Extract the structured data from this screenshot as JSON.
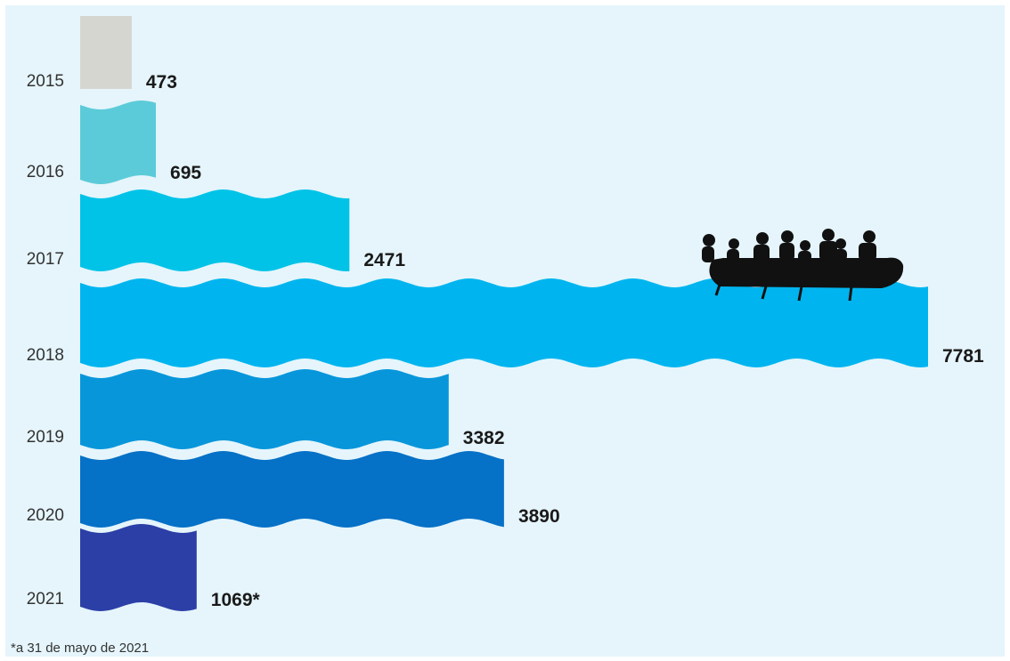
{
  "chart_data": {
    "type": "bar",
    "categories": [
      "2015",
      "2016",
      "2017",
      "2018",
      "2019",
      "2020",
      "2021"
    ],
    "values": [
      473,
      695,
      2471,
      7781,
      3382,
      3890,
      1069
    ],
    "value_labels": [
      "473",
      "695",
      "2471",
      "7781",
      "3382",
      "3890",
      "1069*"
    ],
    "colors": [
      "#d6d6d1",
      "#5ccbd9",
      "#00c3e7",
      "#00b5ef",
      "#0896db",
      "#0571c7",
      "#2c3fa7"
    ],
    "footnote": "*a 31 de mayo de 2021"
  }
}
